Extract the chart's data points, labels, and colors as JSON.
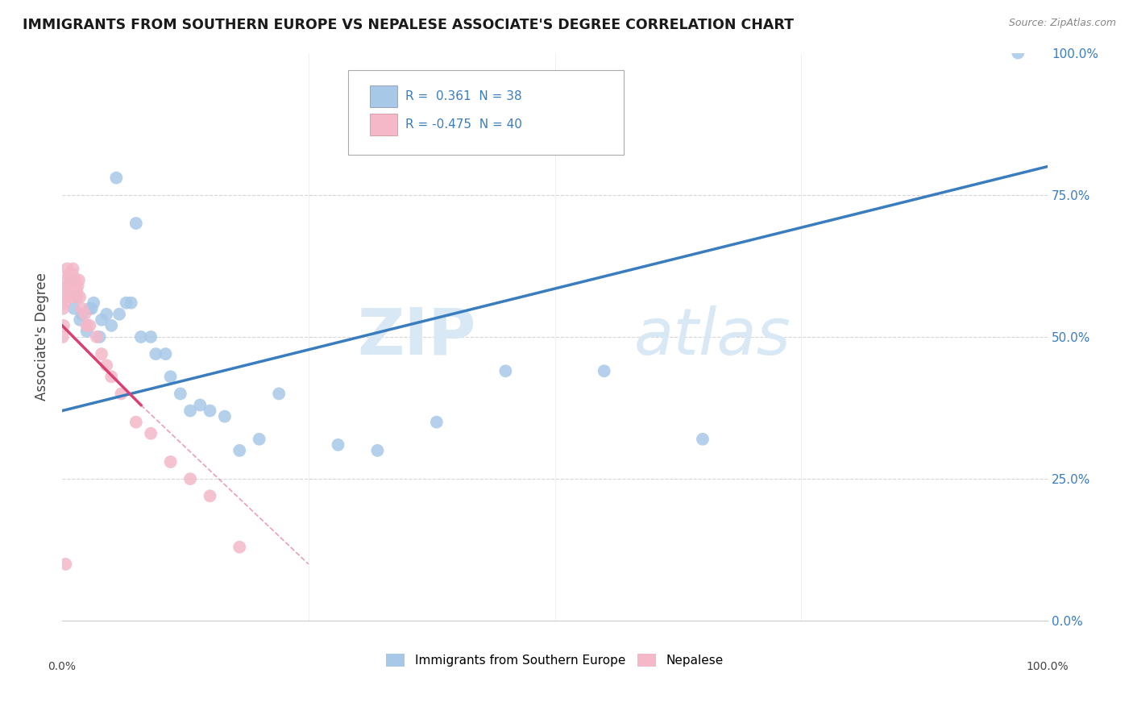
{
  "title": "IMMIGRANTS FROM SOUTHERN EUROPE VS NEPALESE ASSOCIATE'S DEGREE CORRELATION CHART",
  "source": "Source: ZipAtlas.com",
  "ylabel": "Associate's Degree",
  "ytick_labels": [
    "0.0%",
    "25.0%",
    "50.0%",
    "75.0%",
    "100.0%"
  ],
  "ytick_positions": [
    0,
    25,
    50,
    75,
    100
  ],
  "xlim": [
    0,
    100
  ],
  "ylim": [
    0,
    100
  ],
  "blue_color": "#a8c8e8",
  "pink_color": "#f4b8c8",
  "blue_line_color": "#3a7dbf",
  "pink_line_color": "#d84070",
  "watermark_zip": "ZIP",
  "watermark_atlas": "atlas",
  "watermark_color": "#d8e8f4",
  "blue_scatter_x": [
    1.5,
    5.5,
    7.5,
    1.2,
    1.8,
    2.5,
    3.2,
    4.0,
    5.0,
    6.5,
    8.0,
    9.5,
    11.0,
    13.0,
    15.0,
    18.0,
    1.0,
    2.0,
    3.0,
    4.5,
    5.8,
    7.0,
    9.0,
    10.5,
    12.0,
    14.0,
    16.5,
    20.0,
    22.0,
    28.0,
    32.0,
    38.0,
    45.0,
    55.0,
    65.0,
    2.8,
    3.8,
    97.0
  ],
  "blue_scatter_y": [
    57,
    78,
    70,
    55,
    53,
    51,
    56,
    53,
    52,
    56,
    50,
    47,
    43,
    37,
    37,
    30,
    60,
    54,
    55,
    54,
    54,
    56,
    50,
    47,
    40,
    38,
    36,
    32,
    40,
    31,
    30,
    35,
    44,
    44,
    32,
    55,
    50,
    100
  ],
  "pink_scatter_x": [
    0.1,
    0.2,
    0.3,
    0.5,
    0.7,
    0.9,
    1.1,
    1.3,
    1.5,
    1.7,
    0.15,
    0.4,
    0.6,
    0.8,
    1.0,
    1.2,
    1.4,
    1.6,
    1.8,
    2.0,
    2.3,
    2.8,
    3.5,
    4.0,
    5.0,
    6.0,
    7.5,
    9.0,
    11.0,
    13.0,
    15.0,
    18.0,
    0.05,
    0.25,
    0.55,
    0.75,
    1.05,
    2.5,
    4.5,
    0.35
  ],
  "pink_scatter_y": [
    55,
    57,
    60,
    62,
    61,
    58,
    62,
    60,
    58,
    60,
    52,
    58,
    59,
    57,
    60,
    59,
    57,
    59,
    57,
    55,
    54,
    52,
    50,
    47,
    43,
    40,
    35,
    33,
    28,
    25,
    22,
    13,
    50,
    56,
    59,
    61,
    61,
    52,
    45,
    10
  ],
  "blue_line_x0": 0,
  "blue_line_y0": 37,
  "blue_line_x1": 100,
  "blue_line_y1": 80,
  "pink_line_solid_x0": 0,
  "pink_line_solid_y0": 52,
  "pink_line_solid_x1": 8,
  "pink_line_solid_y1": 38,
  "pink_line_dash_x0": 8,
  "pink_line_dash_y0": 38,
  "pink_line_dash_x1": 25,
  "pink_line_dash_y1": 10,
  "background_color": "#ffffff",
  "grid_color": "#cccccc"
}
